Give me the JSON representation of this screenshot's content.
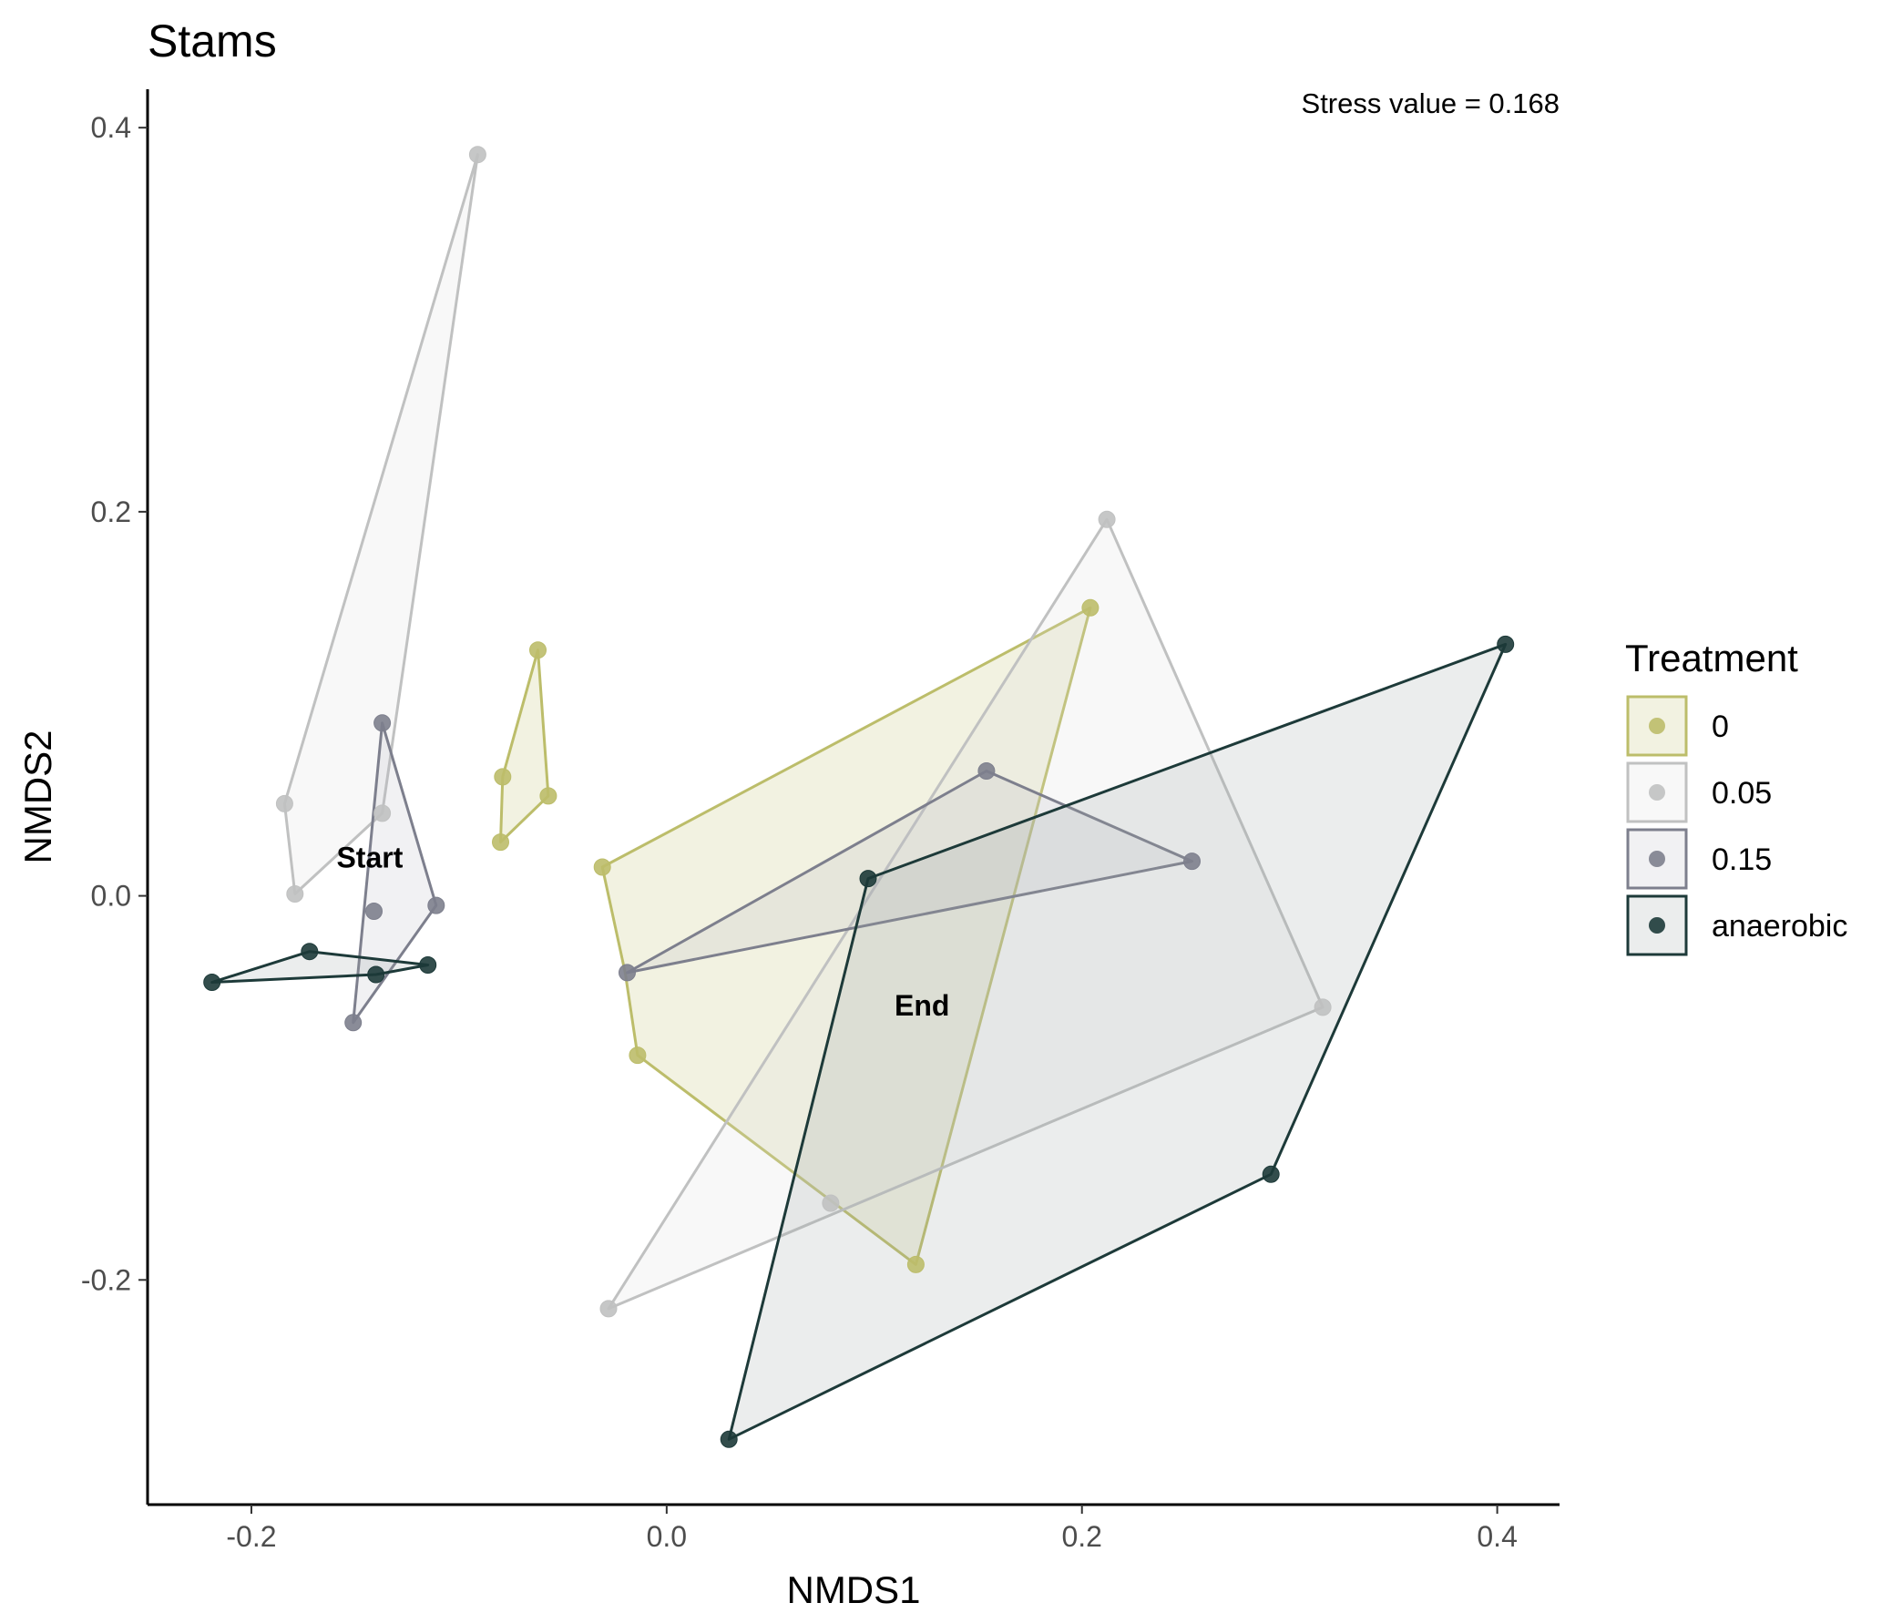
{
  "chart_data": {
    "type": "scatter",
    "title": "Stams",
    "xlabel": "NMDS1",
    "ylabel": "NMDS2",
    "xlim": [
      -0.25,
      0.43
    ],
    "ylim": [
      -0.317,
      0.42
    ],
    "x_ticks": [
      -0.2,
      0.0,
      0.2,
      0.4
    ],
    "x_tick_labels": [
      "-0.2",
      "0.0",
      "0.2",
      "0.4"
    ],
    "y_ticks": [
      -0.2,
      0.0,
      0.2,
      0.4
    ],
    "y_tick_labels": [
      "-0.2",
      "0.0",
      "0.2",
      "0.4"
    ],
    "grid": false,
    "legend": {
      "title": "Treatment",
      "position": "right"
    },
    "annotation": "Stress value = 0.168",
    "text_labels": [
      {
        "text": "Start",
        "x": -0.143,
        "y": 0.02
      },
      {
        "text": "End",
        "x": 0.123,
        "y": -0.057
      }
    ],
    "series": [
      {
        "name": "0",
        "color": "#bcbd6a",
        "fill": "#bcbd6a",
        "points": [
          {
            "x": -0.062,
            "y": 0.128
          },
          {
            "x": -0.079,
            "y": 0.062
          },
          {
            "x": -0.057,
            "y": 0.052
          },
          {
            "x": -0.08,
            "y": 0.028
          },
          {
            "x": -0.031,
            "y": 0.015
          },
          {
            "x": 0.204,
            "y": 0.15
          },
          {
            "x": -0.014,
            "y": -0.083
          },
          {
            "x": 0.12,
            "y": -0.192
          }
        ],
        "hull": [
          [
            -0.062,
            0.128
          ],
          [
            -0.057,
            0.052
          ],
          [
            -0.08,
            0.028
          ],
          [
            -0.079,
            0.062
          ]
        ],
        "hull2": [
          [
            -0.031,
            0.015
          ],
          [
            0.204,
            0.15
          ],
          [
            0.12,
            -0.192
          ],
          [
            -0.014,
            -0.083
          ],
          [
            -0.02,
            -0.04
          ]
        ]
      },
      {
        "name": "0.05",
        "color": "#c0c1c1",
        "fill": "#dcdcdc",
        "points": [
          {
            "x": -0.091,
            "y": 0.386
          },
          {
            "x": -0.184,
            "y": 0.048
          },
          {
            "x": -0.137,
            "y": 0.043
          },
          {
            "x": -0.179,
            "y": 0.001
          },
          {
            "x": 0.212,
            "y": 0.196
          },
          {
            "x": 0.316,
            "y": -0.058
          },
          {
            "x": 0.079,
            "y": -0.16
          },
          {
            "x": -0.028,
            "y": -0.215
          }
        ],
        "hull": [
          [
            -0.091,
            0.386
          ],
          [
            -0.137,
            0.043
          ],
          [
            -0.179,
            0.001
          ],
          [
            -0.184,
            0.048
          ]
        ],
        "hull2": [
          [
            0.212,
            0.196
          ],
          [
            0.316,
            -0.058
          ],
          [
            -0.028,
            -0.215
          ]
        ]
      },
      {
        "name": "0.15",
        "color": "#7d7f8d",
        "fill": "#b7b9c3",
        "points": [
          {
            "x": -0.137,
            "y": 0.09
          },
          {
            "x": -0.111,
            "y": -0.005
          },
          {
            "x": -0.141,
            "y": -0.008
          },
          {
            "x": -0.151,
            "y": -0.066
          },
          {
            "x": 0.154,
            "y": 0.065
          },
          {
            "x": 0.253,
            "y": 0.018
          },
          {
            "x": -0.019,
            "y": -0.04
          }
        ],
        "hull": [
          [
            -0.137,
            0.09
          ],
          [
            -0.111,
            -0.005
          ],
          [
            -0.151,
            -0.066
          ]
        ],
        "hull2": [
          [
            0.154,
            0.065
          ],
          [
            0.253,
            0.018
          ],
          [
            -0.019,
            -0.04
          ]
        ]
      },
      {
        "name": "anaerobic",
        "color": "#1d3a39",
        "fill": "#9aa5a5",
        "points": [
          {
            "x": -0.219,
            "y": -0.045
          },
          {
            "x": -0.172,
            "y": -0.029
          },
          {
            "x": -0.14,
            "y": -0.041
          },
          {
            "x": -0.115,
            "y": -0.036
          },
          {
            "x": 0.097,
            "y": 0.009
          },
          {
            "x": 0.404,
            "y": 0.131
          },
          {
            "x": 0.291,
            "y": -0.145
          },
          {
            "x": 0.03,
            "y": -0.283
          }
        ],
        "hull": [
          [
            -0.219,
            -0.045
          ],
          [
            -0.172,
            -0.029
          ],
          [
            -0.115,
            -0.036
          ],
          [
            -0.14,
            -0.041
          ]
        ],
        "hull2": [
          [
            0.097,
            0.009
          ],
          [
            0.404,
            0.131
          ],
          [
            0.291,
            -0.145
          ],
          [
            0.03,
            -0.283
          ]
        ]
      }
    ]
  }
}
